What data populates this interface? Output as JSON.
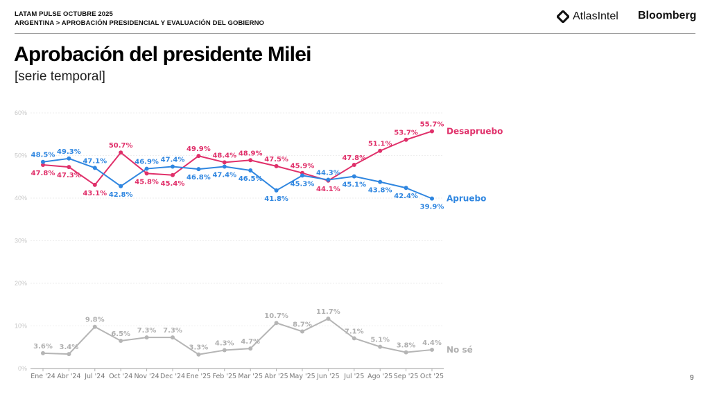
{
  "header": {
    "kicker": "LATAM PULSE OCTUBRE 2025",
    "breadcrumb": "ARGENTINA > APROBACIÓN PRESIDENCIAL Y EVALUACIÓN DEL GOBIERNO",
    "logos": {
      "atlas": "AtlasIntel",
      "bloomberg": "Bloomberg"
    }
  },
  "title": "Aprobación del presidente Milei",
  "subtitle": "[serie temporal]",
  "page_number": "9",
  "chart_data": {
    "type": "line",
    "title": "Aprobación del presidente Milei",
    "subtitle": "[serie temporal]",
    "xlabel": "",
    "ylabel": "",
    "ylim": [
      0,
      60
    ],
    "yticks": [
      0,
      10,
      20,
      30,
      40,
      50,
      60
    ],
    "ytick_labels": [
      "0%",
      "10%",
      "20%",
      "30%",
      "40%",
      "50%",
      "60%"
    ],
    "grid": true,
    "legend": "right-end labels",
    "categories": [
      "Ene '24",
      "Abr '24",
      "Jul '24",
      "Oct '24",
      "Nov '24",
      "Dec '24",
      "Ene '25",
      "Feb '25",
      "Mar '25",
      "Abr '25",
      "May '25",
      "Jun '25",
      "Jul '25",
      "Ago '25",
      "Sep '25",
      "Oct '25"
    ],
    "series": [
      {
        "name": "Desapruebo",
        "color": "#e0306a",
        "values": [
          47.8,
          47.3,
          43.1,
          50.7,
          45.8,
          45.4,
          49.9,
          48.4,
          48.9,
          47.5,
          45.9,
          44.1,
          47.8,
          51.1,
          53.7,
          55.7
        ],
        "label_pos": [
          "below",
          "below",
          "below",
          "above",
          "below",
          "below",
          "above",
          "above",
          "above",
          "above",
          "above",
          "below",
          "above",
          "above",
          "above",
          "above"
        ]
      },
      {
        "name": "Apruebo",
        "color": "#2f86e0",
        "values": [
          48.5,
          49.3,
          47.1,
          42.8,
          46.9,
          47.4,
          46.8,
          47.4,
          46.5,
          41.8,
          45.3,
          44.3,
          45.1,
          43.8,
          42.4,
          39.9
        ],
        "label_pos": [
          "above",
          "above",
          "above",
          "below",
          "above",
          "above",
          "below",
          "below",
          "below",
          "below",
          "below",
          "above",
          "below",
          "below",
          "below",
          "below"
        ]
      },
      {
        "name": "No sé",
        "color": "#b5b5b5",
        "values": [
          3.6,
          3.4,
          9.8,
          6.5,
          7.3,
          7.3,
          3.3,
          4.3,
          4.7,
          10.7,
          8.7,
          11.7,
          7.1,
          5.1,
          3.8,
          4.4
        ],
        "label_pos": [
          "above",
          "above",
          "above",
          "above",
          "above",
          "above",
          "above",
          "above",
          "above",
          "above",
          "above",
          "above",
          "above",
          "above",
          "above",
          "above"
        ]
      }
    ]
  }
}
